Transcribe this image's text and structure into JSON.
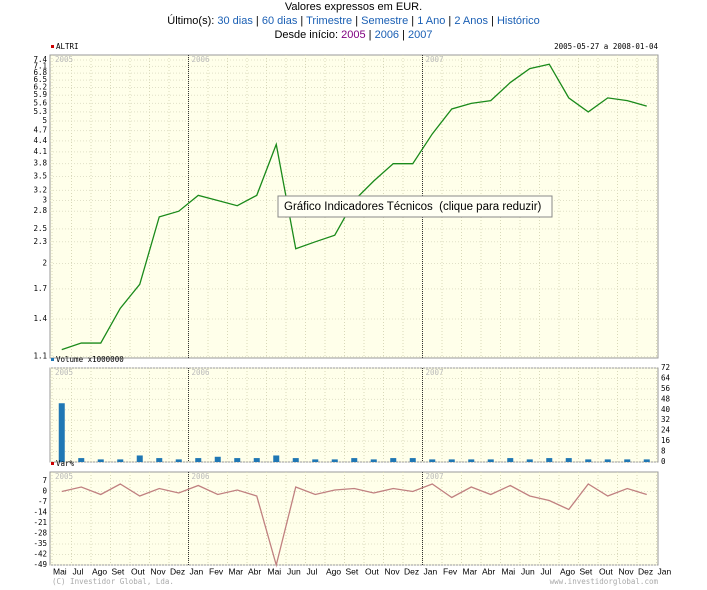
{
  "header": {
    "note": "Valores expressos em EUR.",
    "last_label": "Último(s):",
    "last_links": [
      "30 dias",
      "60 dias",
      "Trimestre",
      "Semestre",
      "1 Ano",
      "2 Anos",
      "Histórico"
    ],
    "since_label": "Desde início:",
    "since_links": [
      "2005",
      "2006",
      "2007"
    ],
    "separator": "|"
  },
  "year_labels": [
    "2005",
    "2006",
    "2007"
  ],
  "chart_data": [
    {
      "type": "line",
      "title": "ALTRI",
      "subtitle": "2005-05-27 a 2008-01-04",
      "log_scale": true,
      "color": "#1a8a1a",
      "grid": true,
      "values": [
        1.15,
        1.2,
        1.2,
        1.5,
        1.75,
        2.7,
        2.8,
        3.1,
        3.0,
        2.9,
        3.1,
        4.3,
        2.2,
        2.3,
        2.4,
        3.0,
        3.4,
        3.8,
        3.8,
        4.6,
        5.4,
        5.6,
        5.7,
        6.4,
        7.0,
        7.2,
        5.8,
        5.3,
        5.8,
        5.7,
        5.5,
        null
      ],
      "ylim": [
        1.09,
        7.64
      ],
      "yticks": [
        1.1,
        1.4,
        1.7,
        2.0,
        2.3,
        2.5,
        2.8,
        3.0,
        3.2,
        3.5,
        3.8,
        4.1,
        4.4,
        4.7,
        5.0,
        5.3,
        5.6,
        5.9,
        6.2,
        6.5,
        6.8,
        7.1,
        7.4
      ]
    },
    {
      "type": "bar",
      "title": "Volume x1000000",
      "color": "#1f77b4",
      "grid": true,
      "values": [
        45,
        3,
        2,
        2,
        5,
        3,
        2,
        3,
        4,
        3,
        3,
        5,
        3,
        2,
        2,
        3,
        2,
        3,
        3,
        2,
        2,
        2,
        2,
        3,
        2,
        3,
        3,
        2,
        2,
        2,
        2,
        null
      ],
      "ylim": [
        0,
        72
      ],
      "yticks": [
        0,
        8,
        16,
        24,
        32,
        40,
        48,
        56,
        64,
        72
      ]
    },
    {
      "type": "line",
      "title": "Var%",
      "color": "#c08080",
      "grid": true,
      "categories": [
        "Mai",
        "Jul",
        "Ago",
        "Set",
        "Out",
        "Nov",
        "Dez",
        "Jan",
        "Fev",
        "Mar",
        "Abr",
        "Mai",
        "Jun",
        "Jul",
        "Ago",
        "Set",
        "Out",
        "Nov",
        "Dez",
        "Jan",
        "Fev",
        "Mar",
        "Abr",
        "Mai",
        "Jun",
        "Jul",
        "Ago",
        "Set",
        "Out",
        "Nov",
        "Dez",
        "Jan"
      ],
      "values": [
        0,
        3,
        -2,
        5,
        -3,
        2,
        -1,
        4,
        -2,
        1,
        -3,
        -49,
        3,
        -2,
        1,
        2,
        -1,
        2,
        0,
        5,
        -4,
        3,
        -2,
        4,
        -3,
        -6,
        -12,
        5,
        -3,
        2,
        -2,
        null
      ],
      "ylim": [
        -49,
        13
      ],
      "yticks": [
        -49,
        -42,
        -35,
        -28,
        -21,
        -14,
        -7,
        0,
        7
      ]
    }
  ],
  "tooltip": "Gráfico Indicadores Técnicos  (clique para reduzir)",
  "footer": {
    "left": "(C) Investidor Global, Lda.",
    "right": "www.investidorglobal.com"
  }
}
